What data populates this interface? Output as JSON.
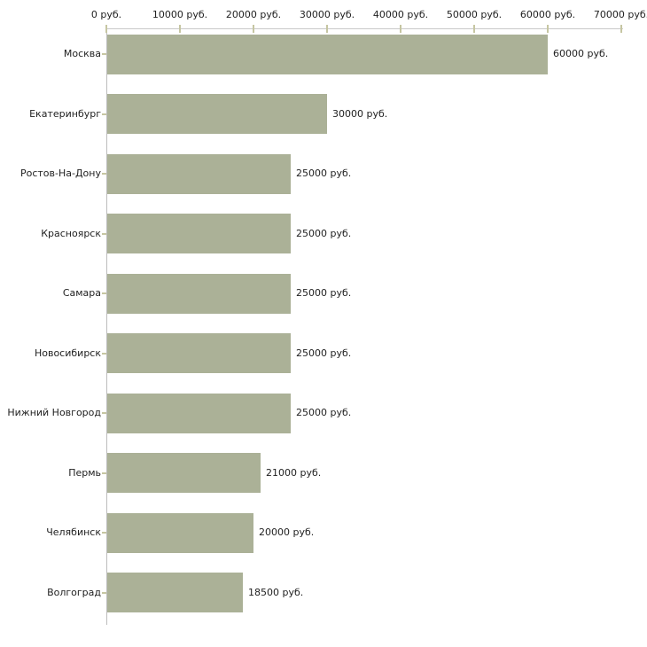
{
  "chart_data": {
    "type": "bar",
    "orientation": "horizontal",
    "title": "",
    "unit": "руб.",
    "categories": [
      "Москва",
      "Екатеринбург",
      "Ростов-На-Дону",
      "Красноярск",
      "Самара",
      "Новосибирск",
      "Нижний Новгород",
      "Пермь",
      "Челябинск",
      "Волгоград"
    ],
    "values": [
      60000,
      30000,
      25000,
      25000,
      25000,
      25000,
      25000,
      21000,
      20000,
      18500
    ],
    "value_labels": [
      "60000 руб.",
      "30000 руб.",
      "25000 руб.",
      "25000 руб.",
      "25000 руб.",
      "25000 руб.",
      "25000 руб.",
      "21000 руб.",
      "20000 руб.",
      "18500 руб."
    ],
    "x_axis": {
      "position": "top",
      "min": 0,
      "max": 70000,
      "tick_step": 10000,
      "tick_labels": [
        "0 руб.",
        "10000 руб.",
        "20000 руб.",
        "30000 руб.",
        "40000 руб.",
        "50000 руб.",
        "60000 руб.",
        "70000 руб."
      ]
    },
    "legend": false,
    "grid": false,
    "colors": {
      "bar": "#abb197",
      "axis_line": "#c8c8c8",
      "axis_line_vertical": "#bdbdbd",
      "tick": "#c6c6a2",
      "text": "#1f1f1f",
      "background": "#ffffff"
    }
  }
}
